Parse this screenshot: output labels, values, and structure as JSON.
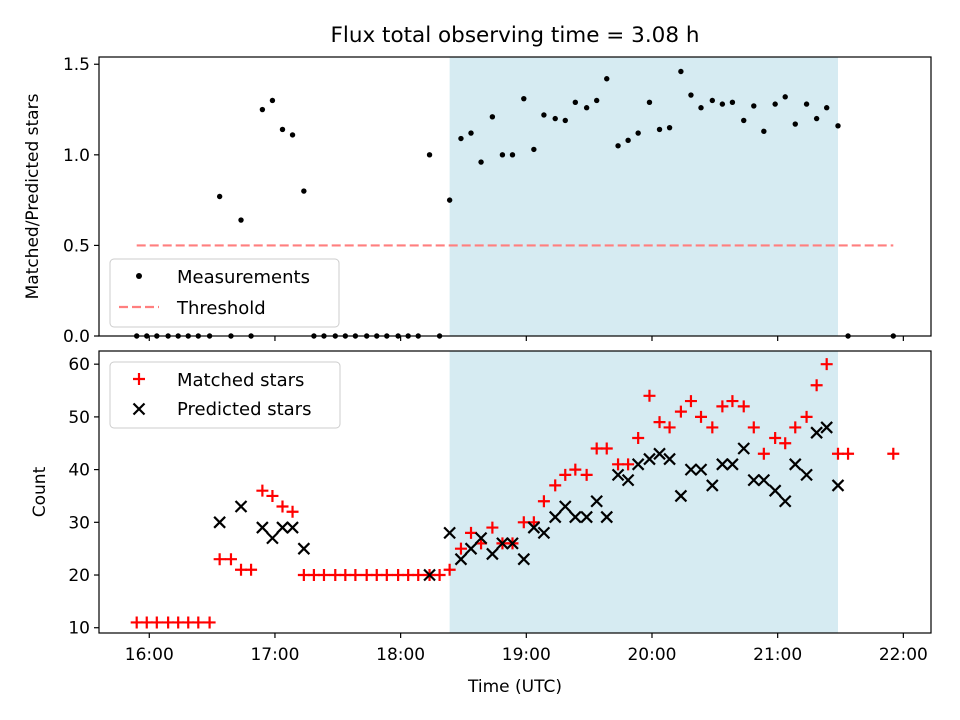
{
  "title": "Flux total observing time = 3.08 h",
  "colors": {
    "shade": "#add8e6",
    "matched": "#ff0000",
    "predicted": "#000000",
    "threshold": "#ff7f7f",
    "measurement": "#000000"
  },
  "chart_data": [
    {
      "type": "scatter",
      "ylabel": "Matched/Predicted stars",
      "xlim": [
        15.6,
        22.22
      ],
      "ylim": [
        0.0,
        1.54
      ],
      "yticks": [
        "0.0",
        "0.5",
        "1.0",
        "1.5"
      ],
      "ytick_values": [
        0.0,
        0.5,
        1.0,
        1.5
      ],
      "shaded_span": [
        18.39,
        21.48
      ],
      "legend": {
        "placement": "lower-left",
        "entries": [
          "Measurements",
          "Threshold"
        ]
      },
      "threshold": {
        "name": "Threshold",
        "value": 0.5,
        "x_range": [
          15.9,
          21.92
        ]
      },
      "series": [
        {
          "name": "Measurements",
          "marker": "dot",
          "points": [
            [
              15.9,
              0.0
            ],
            [
              15.98,
              0.0
            ],
            [
              16.06,
              0.0
            ],
            [
              16.15,
              0.0
            ],
            [
              16.23,
              0.0
            ],
            [
              16.31,
              0.0
            ],
            [
              16.39,
              0.0
            ],
            [
              16.48,
              0.0
            ],
            [
              16.56,
              0.77
            ],
            [
              16.65,
              0.0
            ],
            [
              16.73,
              0.64
            ],
            [
              16.81,
              0.0
            ],
            [
              16.9,
              1.25
            ],
            [
              16.98,
              1.3
            ],
            [
              17.06,
              1.14
            ],
            [
              17.14,
              1.11
            ],
            [
              17.23,
              0.8
            ],
            [
              17.31,
              0.0
            ],
            [
              17.39,
              0.0
            ],
            [
              17.48,
              0.0
            ],
            [
              17.56,
              0.0
            ],
            [
              17.64,
              0.0
            ],
            [
              17.73,
              0.0
            ],
            [
              17.81,
              0.0
            ],
            [
              17.89,
              0.0
            ],
            [
              17.98,
              0.0
            ],
            [
              18.06,
              0.0
            ],
            [
              18.14,
              0.0
            ],
            [
              18.23,
              1.0
            ],
            [
              18.31,
              0.0
            ],
            [
              18.39,
              0.75
            ],
            [
              18.48,
              1.09
            ],
            [
              18.56,
              1.12
            ],
            [
              18.64,
              0.96
            ],
            [
              18.73,
              1.21
            ],
            [
              18.81,
              1.0
            ],
            [
              18.89,
              1.0
            ],
            [
              18.98,
              1.31
            ],
            [
              19.06,
              1.03
            ],
            [
              19.14,
              1.22
            ],
            [
              19.23,
              1.2
            ],
            [
              19.31,
              1.19
            ],
            [
              19.39,
              1.29
            ],
            [
              19.48,
              1.26
            ],
            [
              19.56,
              1.3
            ],
            [
              19.64,
              1.42
            ],
            [
              19.73,
              1.05
            ],
            [
              19.81,
              1.08
            ],
            [
              19.89,
              1.12
            ],
            [
              19.98,
              1.29
            ],
            [
              20.06,
              1.14
            ],
            [
              20.14,
              1.15
            ],
            [
              20.23,
              1.46
            ],
            [
              20.31,
              1.33
            ],
            [
              20.39,
              1.26
            ],
            [
              20.48,
              1.3
            ],
            [
              20.56,
              1.28
            ],
            [
              20.64,
              1.29
            ],
            [
              20.73,
              1.19
            ],
            [
              20.81,
              1.27
            ],
            [
              20.89,
              1.13
            ],
            [
              20.98,
              1.28
            ],
            [
              21.06,
              1.32
            ],
            [
              21.14,
              1.17
            ],
            [
              21.23,
              1.28
            ],
            [
              21.31,
              1.2
            ],
            [
              21.39,
              1.26
            ],
            [
              21.48,
              1.16
            ],
            [
              21.56,
              0.0
            ],
            [
              21.92,
              0.0
            ]
          ]
        }
      ]
    },
    {
      "type": "scatter",
      "xlabel": "Time (UTC)",
      "ylabel": "Count",
      "xlim": [
        15.6,
        22.22
      ],
      "ylim": [
        9.0,
        62.5
      ],
      "xticks": [
        "16:00",
        "17:00",
        "18:00",
        "19:00",
        "20:00",
        "21:00",
        "22:00"
      ],
      "xtick_values": [
        16,
        17,
        18,
        19,
        20,
        21,
        22
      ],
      "yticks": [
        "10",
        "20",
        "30",
        "40",
        "50",
        "60"
      ],
      "ytick_values": [
        10,
        20,
        30,
        40,
        50,
        60
      ],
      "shaded_span": [
        18.39,
        21.48
      ],
      "legend": {
        "placement": "upper-left",
        "entries": [
          "Matched stars",
          "Predicted stars"
        ]
      },
      "series": [
        {
          "name": "Matched stars",
          "marker": "plus",
          "points": [
            [
              15.9,
              11
            ],
            [
              15.98,
              11
            ],
            [
              16.06,
              11
            ],
            [
              16.15,
              11
            ],
            [
              16.23,
              11
            ],
            [
              16.31,
              11
            ],
            [
              16.39,
              11
            ],
            [
              16.48,
              11
            ],
            [
              16.56,
              23
            ],
            [
              16.65,
              23
            ],
            [
              16.73,
              21
            ],
            [
              16.81,
              21
            ],
            [
              16.9,
              36
            ],
            [
              16.98,
              35
            ],
            [
              17.06,
              33
            ],
            [
              17.14,
              32
            ],
            [
              17.23,
              20
            ],
            [
              17.31,
              20
            ],
            [
              17.39,
              20
            ],
            [
              17.48,
              20
            ],
            [
              17.56,
              20
            ],
            [
              17.64,
              20
            ],
            [
              17.73,
              20
            ],
            [
              17.81,
              20
            ],
            [
              17.89,
              20
            ],
            [
              17.98,
              20
            ],
            [
              18.06,
              20
            ],
            [
              18.14,
              20
            ],
            [
              18.23,
              20
            ],
            [
              18.31,
              20
            ],
            [
              18.39,
              21
            ],
            [
              18.48,
              25
            ],
            [
              18.56,
              28
            ],
            [
              18.64,
              26
            ],
            [
              18.73,
              29
            ],
            [
              18.81,
              26
            ],
            [
              18.89,
              26
            ],
            [
              18.98,
              30
            ],
            [
              19.06,
              30
            ],
            [
              19.14,
              34
            ],
            [
              19.23,
              37
            ],
            [
              19.31,
              39
            ],
            [
              19.39,
              40
            ],
            [
              19.48,
              39
            ],
            [
              19.56,
              44
            ],
            [
              19.64,
              44
            ],
            [
              19.73,
              41
            ],
            [
              19.81,
              41
            ],
            [
              19.89,
              46
            ],
            [
              19.98,
              54
            ],
            [
              20.06,
              49
            ],
            [
              20.14,
              48
            ],
            [
              20.23,
              51
            ],
            [
              20.31,
              53
            ],
            [
              20.39,
              50
            ],
            [
              20.48,
              48
            ],
            [
              20.56,
              52
            ],
            [
              20.64,
              53
            ],
            [
              20.73,
              52
            ],
            [
              20.81,
              48
            ],
            [
              20.89,
              43
            ],
            [
              20.98,
              46
            ],
            [
              21.06,
              45
            ],
            [
              21.14,
              48
            ],
            [
              21.23,
              50
            ],
            [
              21.31,
              56
            ],
            [
              21.39,
              60
            ],
            [
              21.48,
              43
            ],
            [
              21.56,
              43
            ],
            [
              21.92,
              43
            ]
          ]
        },
        {
          "name": "Predicted stars",
          "marker": "x",
          "points": [
            [
              16.56,
              30
            ],
            [
              16.73,
              33
            ],
            [
              16.9,
              29
            ],
            [
              16.98,
              27
            ],
            [
              17.06,
              29
            ],
            [
              17.14,
              29
            ],
            [
              17.23,
              25
            ],
            [
              18.23,
              20
            ],
            [
              18.39,
              28
            ],
            [
              18.48,
              23
            ],
            [
              18.56,
              25
            ],
            [
              18.64,
              27
            ],
            [
              18.73,
              24
            ],
            [
              18.81,
              26
            ],
            [
              18.89,
              26
            ],
            [
              18.98,
              23
            ],
            [
              19.06,
              29
            ],
            [
              19.14,
              28
            ],
            [
              19.23,
              31
            ],
            [
              19.31,
              33
            ],
            [
              19.39,
              31
            ],
            [
              19.48,
              31
            ],
            [
              19.56,
              34
            ],
            [
              19.64,
              31
            ],
            [
              19.73,
              39
            ],
            [
              19.81,
              38
            ],
            [
              19.89,
              41
            ],
            [
              19.98,
              42
            ],
            [
              20.06,
              43
            ],
            [
              20.14,
              42
            ],
            [
              20.23,
              35
            ],
            [
              20.31,
              40
            ],
            [
              20.39,
              40
            ],
            [
              20.48,
              37
            ],
            [
              20.56,
              41
            ],
            [
              20.64,
              41
            ],
            [
              20.73,
              44
            ],
            [
              20.81,
              38
            ],
            [
              20.89,
              38
            ],
            [
              20.98,
              36
            ],
            [
              21.06,
              34
            ],
            [
              21.14,
              41
            ],
            [
              21.23,
              39
            ],
            [
              21.31,
              47
            ],
            [
              21.39,
              48
            ],
            [
              21.48,
              37
            ]
          ]
        }
      ]
    }
  ]
}
